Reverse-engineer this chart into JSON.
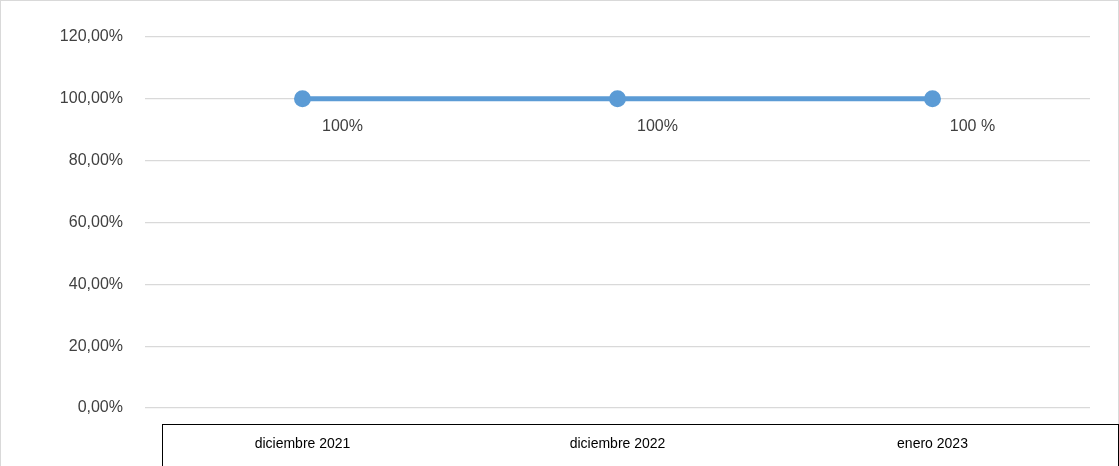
{
  "chart_data": {
    "type": "line",
    "categories": [
      "diciembre 2021",
      "diciembre 2022",
      "enero 2023"
    ],
    "series": [
      {
        "color": "#5b9bd5",
        "values": [
          100,
          100,
          100
        ],
        "value_labels": [
          "100%",
          "100%",
          "100 %"
        ]
      }
    ],
    "ylim": [
      0,
      120
    ],
    "yticks": [
      {
        "value": 0,
        "label": "0,00%"
      },
      {
        "value": 20,
        "label": "20,00%"
      },
      {
        "value": 40,
        "label": "40,00%"
      },
      {
        "value": 60,
        "label": "60,00%"
      },
      {
        "value": 80,
        "label": "80,00%"
      },
      {
        "value": 100,
        "label": "100,00%"
      },
      {
        "value": 120,
        "label": "120,00%"
      }
    ],
    "grid": "y",
    "legend": false,
    "marker": "circle",
    "line_style": "solid"
  }
}
